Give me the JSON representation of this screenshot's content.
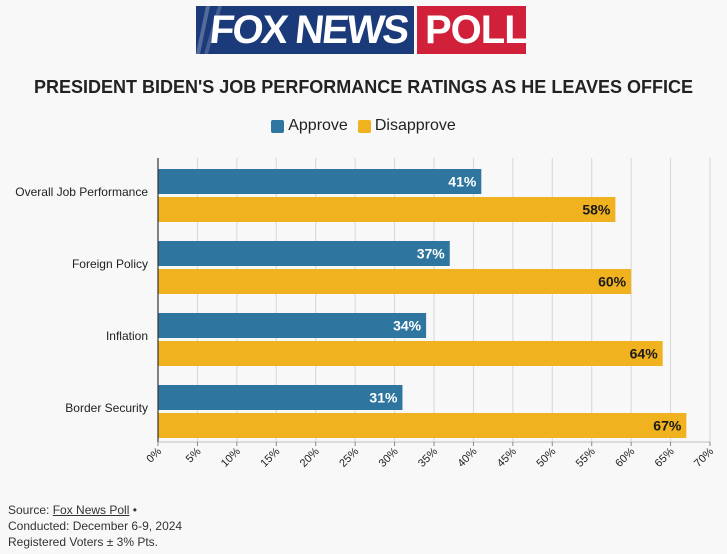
{
  "logo": {
    "brand": "FOX NEWS",
    "poll": "POLL"
  },
  "colors": {
    "approve": "#2e769f",
    "disapprove": "#f0b21e",
    "grid": "#d6d6d6",
    "fox_blue": "#1b3a7a",
    "poll_red": "#d0203a"
  },
  "chart_data": {
    "type": "bar",
    "orientation": "horizontal",
    "title": "PRESIDENT BIDEN'S JOB PERFORMANCE RATINGS AS HE LEAVES OFFICE",
    "categories": [
      "Overall Job Performance",
      "Foreign Policy",
      "Inflation",
      "Border Security"
    ],
    "series": [
      {
        "name": "Approve",
        "values": [
          41,
          37,
          34,
          31
        ]
      },
      {
        "name": "Disapprove",
        "values": [
          58,
          60,
          64,
          67
        ]
      }
    ],
    "value_suffix": "%",
    "xlim": [
      0,
      70
    ],
    "xticks": [
      0,
      5,
      10,
      15,
      20,
      25,
      30,
      35,
      40,
      45,
      50,
      55,
      60,
      65,
      70
    ],
    "xtick_labels": [
      "0%",
      "5%",
      "10%",
      "15%",
      "20%",
      "25%",
      "30%",
      "35%",
      "40%",
      "45%",
      "50%",
      "55%",
      "60%",
      "65%",
      "70%"
    ],
    "grid": true,
    "legend_position": "top-center"
  },
  "source": {
    "prefix": "Source: ",
    "link": "Fox News Poll",
    "bullet": " •",
    "conducted": "Conducted: December 6-9, 2024",
    "voters": "Registered Voters ± 3% Pts."
  }
}
